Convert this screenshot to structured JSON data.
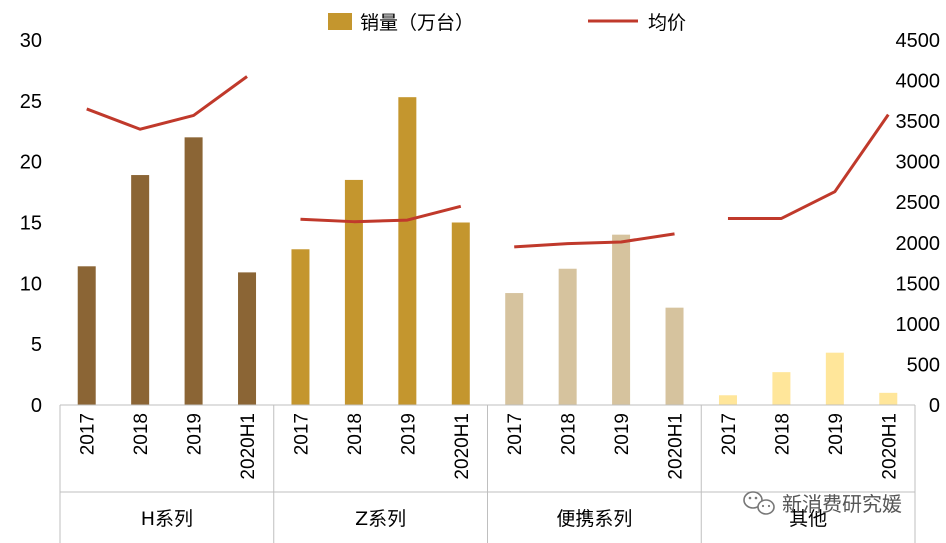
{
  "chart_data": {
    "type": "bar",
    "legend": {
      "bar_label": "销量（万台）",
      "line_label": "均价",
      "placement": "top"
    },
    "left_axis": {
      "ylim": [
        0,
        30
      ],
      "ticks": [
        "0",
        "5",
        "10",
        "15",
        "20",
        "25",
        "30"
      ]
    },
    "right_axis": {
      "ylim": [
        0,
        4500
      ],
      "ticks": [
        "0",
        "500",
        "1000",
        "1500",
        "2000",
        "2500",
        "3000",
        "3500",
        "4000",
        "4500"
      ]
    },
    "groups": [
      {
        "name": "H系列",
        "categories": [
          "2017",
          "2018",
          "2019",
          "2020H1"
        ],
        "sales": [
          11.4,
          18.9,
          22.0,
          10.9
        ],
        "price": [
          3650,
          3400,
          3570,
          4050
        ],
        "color": "#8B6535"
      },
      {
        "name": "Z系列",
        "categories": [
          "2017",
          "2018",
          "2019",
          "2020H1"
        ],
        "sales": [
          12.8,
          18.5,
          25.3,
          15.0
        ],
        "price": [
          2290,
          2260,
          2280,
          2450
        ],
        "color": "#C4962E"
      },
      {
        "name": "便携系列",
        "categories": [
          "2017",
          "2018",
          "2019",
          "2020H1"
        ],
        "sales": [
          9.2,
          11.2,
          14.0,
          8.0
        ],
        "price": [
          1950,
          1990,
          2010,
          2110
        ],
        "color": "#D6C39E"
      },
      {
        "name": "其他",
        "categories": [
          "2017",
          "2018",
          "2019",
          "2020H1"
        ],
        "sales": [
          0.8,
          2.7,
          4.3,
          1.0
        ],
        "price": [
          2300,
          2300,
          2630,
          3580
        ],
        "color": "#FFE69A"
      }
    ],
    "line_color": "#C0392B",
    "legend_bar_color": "#C4962E"
  },
  "watermark": {
    "text": "新消费研究媛"
  }
}
